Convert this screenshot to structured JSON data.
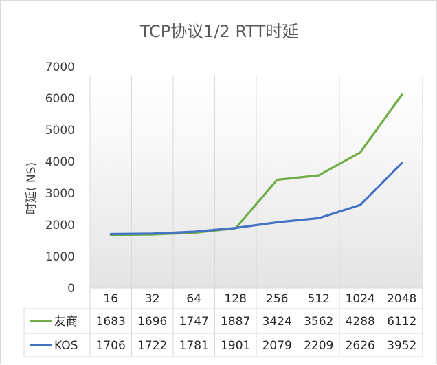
{
  "chart_data": {
    "type": "line",
    "title": "TCP协议1/2  RTT时延",
    "ylabel": "时延( NS)",
    "xlabel": "",
    "categories": [
      "16",
      "32",
      "64",
      "128",
      "256",
      "512",
      "1024",
      "2048"
    ],
    "ylim": [
      0,
      7000
    ],
    "yticks": [
      0,
      1000,
      2000,
      3000,
      4000,
      5000,
      6000,
      7000
    ],
    "series": [
      {
        "name": "友商",
        "color": "#70ad47",
        "values": [
          1683,
          1696,
          1747,
          1887,
          3424,
          3562,
          4288,
          6112
        ]
      },
      {
        "name": "KOS",
        "color": "#4472c4",
        "values": [
          1706,
          1722,
          1781,
          1901,
          2079,
          2209,
          2626,
          3952
        ]
      }
    ],
    "data_table": true,
    "grid": "vertical"
  }
}
